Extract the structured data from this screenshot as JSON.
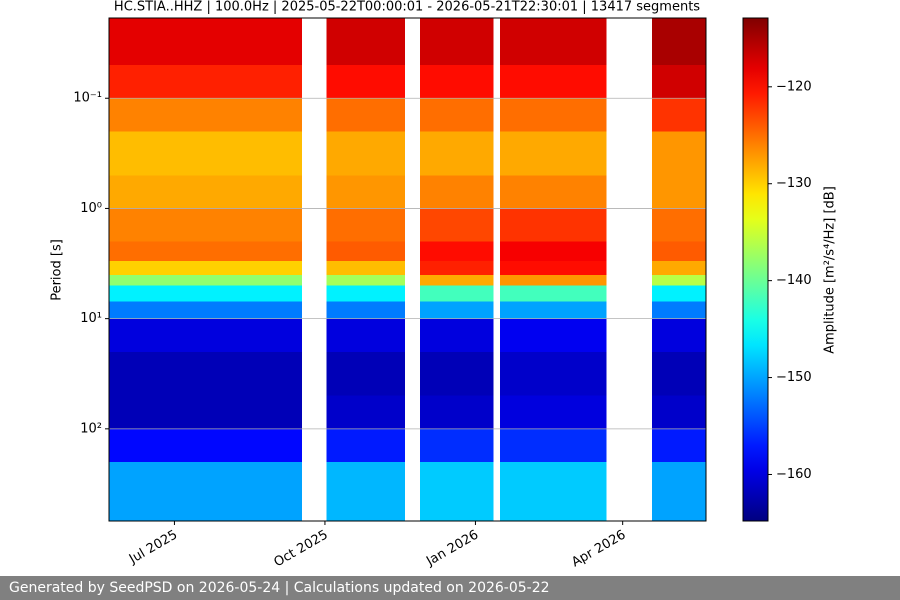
{
  "chart_data": {
    "type": "spectrogram",
    "title": "HC.STIA..HHZ | 100.0Hz | 2025-05-22T00:00:01 - 2026-05-21T22:30:01 | 13417 segments",
    "ylabel": "Period [s]",
    "colorbar_label": "Amplitude [m²/s⁴/Hz] [dB]",
    "footer": "Generated by SeedPSD on 2026-05-24 | Calculations updated on 2026-05-22",
    "xlim": [
      "2025-05-22T00:00:01",
      "2026-05-21T22:30:01"
    ],
    "xticks": [
      {
        "value": "2025-07-01",
        "label": "Jul 2025"
      },
      {
        "value": "2025-10-01",
        "label": "Oct 2025"
      },
      {
        "value": "2026-01-01",
        "label": "Jan 2026"
      },
      {
        "value": "2026-04-01",
        "label": "Apr 2026"
      }
    ],
    "ylim": [
      0.0187,
      686
    ],
    "ylog": true,
    "yinverted": true,
    "yticks": [
      {
        "value": 0.1,
        "label": "10⁻¹"
      },
      {
        "value": 1,
        "label": "10⁰"
      },
      {
        "value": 10,
        "label": "10¹"
      },
      {
        "value": 100,
        "label": "10²"
      }
    ],
    "grid": true,
    "colormap": "jet",
    "clim": [
      -164.8,
      -112.9
    ],
    "cticks": [
      {
        "value": -120,
        "label": "−120"
      },
      {
        "value": -130,
        "label": "−130"
      },
      {
        "value": -140,
        "label": "−140"
      },
      {
        "value": -150,
        "label": "−150"
      },
      {
        "value": -160,
        "label": "−160"
      }
    ],
    "period_bins": [
      0.0187,
      0.05,
      0.1,
      0.2,
      0.5,
      1,
      2,
      3,
      4,
      5,
      7,
      10,
      20,
      50,
      100,
      200,
      686
    ],
    "segments": [
      {
        "start": "2025-05-22T00:00:01",
        "end": "2025-09-17",
        "values": [
          -118,
          -121,
          -126,
          -129,
          -128,
          -126,
          -125,
          -130,
          -138,
          -146,
          -152,
          -160,
          -162,
          -162,
          -158,
          -150
        ]
      },
      {
        "start": "2025-10-02",
        "end": "2025-11-19",
        "values": [
          -117,
          -120,
          -125,
          -128,
          -127,
          -125,
          -124,
          -129,
          -137,
          -146,
          -152,
          -160,
          -162,
          -161,
          -157,
          -149
        ]
      },
      {
        "start": "2025-11-28",
        "end": "2026-01-12",
        "values": [
          -117,
          -120,
          -125,
          -128,
          -126,
          -123,
          -120,
          -121,
          -128,
          -142,
          -150,
          -160,
          -162,
          -161,
          -156,
          -148
        ]
      },
      {
        "start": "2026-01-16",
        "end": "2026-03-22",
        "values": [
          -117,
          -120,
          -125,
          -128,
          -126,
          -122,
          -119,
          -120,
          -127,
          -142,
          -150,
          -159,
          -161,
          -160,
          -156,
          -148
        ]
      },
      {
        "start": "2026-04-19",
        "end": "2026-05-21T22:30:01",
        "values": [
          -115,
          -117,
          -122,
          -127,
          -127,
          -125,
          -124,
          -128,
          -136,
          -146,
          -152,
          -160,
          -162,
          -161,
          -157,
          -150
        ]
      }
    ]
  }
}
